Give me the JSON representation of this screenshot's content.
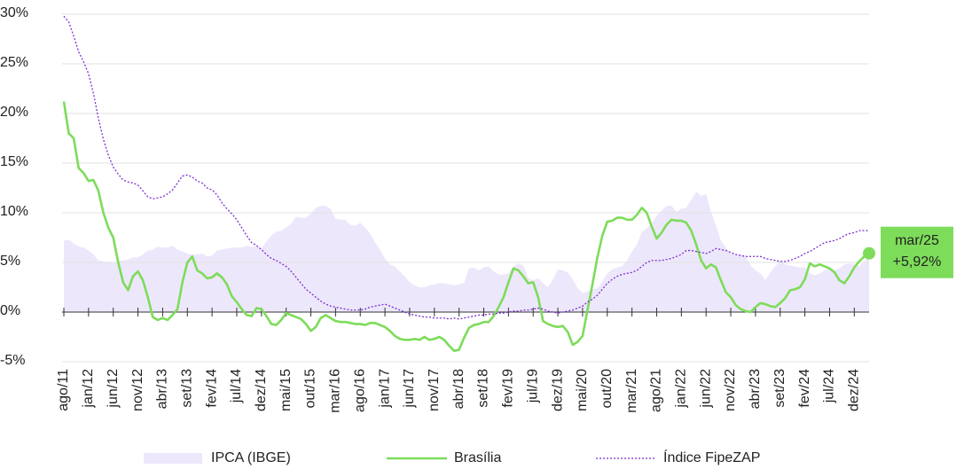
{
  "chart_data": {
    "type": "line",
    "categories": [
      "ago/11",
      null,
      null,
      null,
      null,
      "jan/12",
      null,
      null,
      null,
      null,
      "jun/12",
      null,
      null,
      null,
      null,
      "nov/12",
      null,
      null,
      null,
      null,
      "abr/13",
      null,
      null,
      null,
      null,
      "set/13",
      null,
      null,
      null,
      null,
      "fev/14",
      null,
      null,
      null,
      null,
      "jul/14",
      null,
      null,
      null,
      null,
      "dez/14",
      null,
      null,
      null,
      null,
      "mai/15",
      null,
      null,
      null,
      null,
      "out/15",
      null,
      null,
      null,
      null,
      "mar/16",
      null,
      null,
      null,
      null,
      "ago/16",
      null,
      null,
      null,
      null,
      "jan/17",
      null,
      null,
      null,
      null,
      "jun/17",
      null,
      null,
      null,
      null,
      "nov/17",
      null,
      null,
      null,
      null,
      "abr/18",
      null,
      null,
      null,
      null,
      "set/18",
      null,
      null,
      null,
      null,
      "fev/19",
      null,
      null,
      null,
      null,
      "jul/19",
      null,
      null,
      null,
      null,
      "dez/19",
      null,
      null,
      null,
      null,
      "mai/20",
      null,
      null,
      null,
      null,
      "out/20",
      null,
      null,
      null,
      null,
      "mar/21",
      null,
      null,
      null,
      null,
      "ago/21",
      null,
      null,
      null,
      null,
      "jan/22",
      null,
      null,
      null,
      null,
      "jun/22",
      null,
      null,
      null,
      null,
      "nov/22",
      null,
      null,
      null,
      null,
      "abr/23",
      null,
      null,
      null,
      null,
      "set/23",
      null,
      null,
      null,
      null,
      "fev/24",
      null,
      null,
      null,
      null,
      "jul/24",
      null,
      null,
      null,
      null,
      "dez/24",
      null,
      null,
      null
    ],
    "series": [
      {
        "name": "IPCA (IBGE)",
        "type": "area",
        "color": "#ede7fb",
        "values": [
          7.2,
          7.3,
          6.9,
          6.6,
          6.5,
          6.2,
          5.8,
          5.2,
          5.1,
          5.0,
          4.9,
          5.2,
          5.2,
          5.3,
          5.5,
          5.5,
          5.8,
          6.2,
          6.3,
          6.6,
          6.5,
          6.5,
          6.7,
          6.3,
          6.1,
          5.9,
          5.8,
          5.8,
          5.9,
          5.6,
          5.7,
          6.2,
          6.3,
          6.4,
          6.5,
          6.5,
          6.5,
          6.7,
          6.6,
          6.6,
          6.4,
          7.1,
          7.7,
          8.1,
          8.2,
          8.5,
          8.9,
          9.6,
          9.5,
          9.5,
          9.9,
          10.5,
          10.7,
          10.7,
          10.4,
          9.4,
          9.3,
          9.3,
          8.8,
          8.7,
          9.0,
          8.5,
          7.9,
          7.0,
          6.3,
          5.4,
          4.8,
          4.6,
          4.1,
          3.6,
          3.0,
          2.7,
          2.5,
          2.5,
          2.7,
          2.8,
          2.9,
          2.9,
          2.8,
          2.7,
          2.8,
          2.9,
          4.4,
          4.5,
          4.2,
          4.5,
          4.6,
          4.1,
          3.8,
          3.8,
          3.9,
          4.6,
          4.9,
          4.7,
          3.4,
          3.2,
          3.4,
          2.9,
          2.5,
          3.3,
          4.3,
          4.2,
          4.0,
          3.3,
          2.4,
          1.9,
          2.1,
          2.3,
          2.4,
          3.1,
          3.9,
          4.3,
          4.5,
          4.6,
          5.2,
          6.1,
          6.8,
          8.1,
          8.4,
          9.0,
          9.7,
          10.2,
          10.7,
          10.7,
          10.1,
          10.4,
          10.5,
          11.3,
          12.1,
          11.7,
          11.9,
          10.1,
          8.7,
          7.2,
          6.5,
          5.9,
          5.8,
          5.8,
          5.6,
          4.7,
          4.2,
          3.9,
          3.2,
          4.0,
          4.6,
          5.2,
          4.8,
          4.7,
          4.6,
          4.5,
          4.5,
          3.9,
          3.7,
          3.9,
          4.2,
          4.5,
          4.2,
          4.4,
          4.8,
          4.9,
          4.8,
          4.6,
          5.1,
          5.5
        ]
      },
      {
        "name": "Brasília",
        "type": "line",
        "color": "#7ddc5a",
        "values": [
          21.2,
          18.0,
          17.5,
          14.5,
          14.0,
          13.2,
          13.3,
          12.2,
          10.0,
          8.5,
          7.5,
          5.0,
          3.0,
          2.2,
          3.6,
          4.1,
          3.2,
          1.5,
          -0.5,
          -0.8,
          -0.6,
          -0.8,
          -0.3,
          0.3,
          3.0,
          5.0,
          5.6,
          4.2,
          3.9,
          3.4,
          3.5,
          3.9,
          3.5,
          2.8,
          1.6,
          1.0,
          0.3,
          -0.3,
          -0.4,
          0.4,
          0.3,
          -0.4,
          -1.2,
          -1.3,
          -0.8,
          -0.1,
          -0.3,
          -0.5,
          -0.7,
          -1.2,
          -1.9,
          -1.5,
          -0.6,
          -0.3,
          -0.6,
          -0.9,
          -1.0,
          -1.0,
          -1.1,
          -1.2,
          -1.2,
          -1.3,
          -1.1,
          -1.1,
          -1.3,
          -1.5,
          -1.9,
          -2.4,
          -2.7,
          -2.8,
          -2.8,
          -2.7,
          -2.8,
          -2.5,
          -2.8,
          -2.7,
          -2.5,
          -2.8,
          -3.4,
          -3.9,
          -3.8,
          -2.6,
          -1.6,
          -1.3,
          -1.2,
          -1.0,
          -1.0,
          -0.4,
          0.5,
          1.5,
          3.0,
          4.4,
          4.2,
          3.6,
          2.9,
          3.0,
          1.5,
          -0.9,
          -1.2,
          -1.4,
          -1.5,
          -1.4,
          -2.0,
          -3.3,
          -3.0,
          -2.4,
          0.2,
          2.8,
          5.5,
          7.7,
          9.1,
          9.2,
          9.5,
          9.5,
          9.3,
          9.3,
          9.8,
          10.5,
          10.0,
          8.6,
          7.4,
          8.0,
          8.8,
          9.3,
          9.2,
          9.2,
          9.0,
          8.2,
          6.8,
          5.2,
          4.4,
          4.8,
          4.5,
          3.2,
          2.0,
          1.5,
          0.7,
          0.3,
          0.1,
          0.0,
          0.5,
          0.9,
          0.8,
          0.6,
          0.5,
          0.9,
          1.4,
          2.2,
          2.3,
          2.5,
          3.3,
          4.9,
          4.6,
          4.8,
          4.6,
          4.4,
          4.0,
          3.2,
          2.9,
          3.6,
          4.5,
          5.1,
          5.6,
          5.92
        ]
      },
      {
        "name": "Índice FipeZAP",
        "type": "line",
        "line_style": "dotted",
        "color": "#7b2fd1",
        "values": [
          29.8,
          29.2,
          27.8,
          26.2,
          25.2,
          24.0,
          22.0,
          19.5,
          17.4,
          15.8,
          14.6,
          13.9,
          13.3,
          13.1,
          13.0,
          12.8,
          12.2,
          11.6,
          11.4,
          11.5,
          11.6,
          11.9,
          12.3,
          13.0,
          13.7,
          13.8,
          13.6,
          13.2,
          13.0,
          12.5,
          12.3,
          11.8,
          11.0,
          10.4,
          9.9,
          9.3,
          8.5,
          7.7,
          7.0,
          6.7,
          6.3,
          5.8,
          5.4,
          5.2,
          4.9,
          4.6,
          4.1,
          3.5,
          2.9,
          2.3,
          1.9,
          1.5,
          1.1,
          0.8,
          0.6,
          0.5,
          0.4,
          0.3,
          0.2,
          0.2,
          0.2,
          0.3,
          0.5,
          0.6,
          0.7,
          0.8,
          0.6,
          0.4,
          0.2,
          0.0,
          -0.2,
          -0.3,
          -0.4,
          -0.5,
          -0.5,
          -0.6,
          -0.6,
          -0.6,
          -0.7,
          -0.6,
          -0.7,
          -0.6,
          -0.5,
          -0.4,
          -0.3,
          -0.3,
          -0.2,
          -0.2,
          -0.1,
          -0.1,
          0.0,
          0.1,
          0.1,
          0.2,
          0.2,
          0.3,
          0.4,
          0.3,
          0.1,
          0.0,
          -0.1,
          0.0,
          0.1,
          0.2,
          0.4,
          0.6,
          1.0,
          1.3,
          1.7,
          2.3,
          2.9,
          3.3,
          3.6,
          3.8,
          3.9,
          4.0,
          4.2,
          4.6,
          5.0,
          5.2,
          5.2,
          5.2,
          5.3,
          5.4,
          5.6,
          5.8,
          6.2,
          6.2,
          6.1,
          6.0,
          5.9,
          6.1,
          6.4,
          6.3,
          6.2,
          6.0,
          5.8,
          5.7,
          5.6,
          5.6,
          5.6,
          5.6,
          5.4,
          5.3,
          5.2,
          5.1,
          5.1,
          5.2,
          5.4,
          5.6,
          5.9,
          6.1,
          6.4,
          6.7,
          7.0,
          7.1,
          7.2,
          7.4,
          7.7,
          7.9,
          8.0,
          8.2,
          8.2,
          8.2
        ]
      }
    ],
    "annotation": {
      "date": "mar/25",
      "text": "+5,92%"
    },
    "ylim": [
      -5,
      30
    ],
    "yticks": [
      {
        "value": -5,
        "label": "-5%"
      },
      {
        "value": 0,
        "label": "0%"
      },
      {
        "value": 5,
        "label": "5%"
      },
      {
        "value": 10,
        "label": "10%"
      },
      {
        "value": 15,
        "label": "15%"
      },
      {
        "value": 20,
        "label": "20%"
      },
      {
        "value": 25,
        "label": "25%"
      },
      {
        "value": 30,
        "label": "30%"
      }
    ],
    "grid": true,
    "legend": "bottom"
  }
}
